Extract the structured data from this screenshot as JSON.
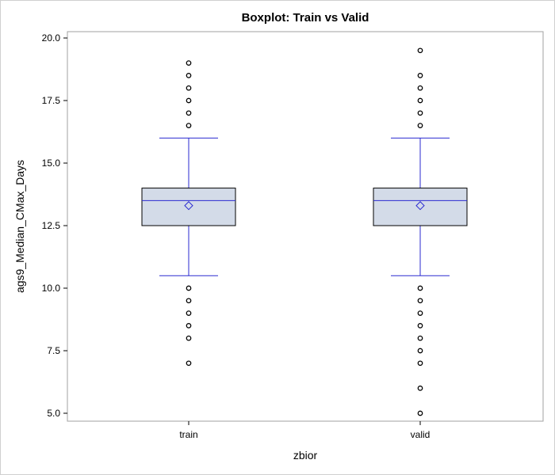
{
  "chart_data": {
    "type": "boxplot",
    "title": "Boxplot: Train vs Valid",
    "xlabel": "zbior",
    "ylabel": "ags9_Median_CMax_Days",
    "ylim": [
      5.0,
      20.0
    ],
    "yticks": [
      5.0,
      7.5,
      10.0,
      12.5,
      15.0,
      17.5,
      20.0
    ],
    "ytick_labels": [
      "5.0",
      "7.5",
      "10.0",
      "12.5",
      "15.0",
      "17.5",
      "20.0"
    ],
    "grid": false,
    "colors": {
      "box_fill": "#d3dbe8",
      "box_stroke": "#000000",
      "whisker": "#2a2ad0",
      "median": "#2a2ad0",
      "mean_marker": "#2a2ad0",
      "outlier": "#000000"
    },
    "categories": [
      "train",
      "valid"
    ],
    "boxes": [
      {
        "category": "train",
        "whisker_low": 10.5,
        "q1": 12.5,
        "median": 13.5,
        "q3": 14.0,
        "whisker_high": 16.0,
        "mean": 13.3,
        "outliers": [
          7.0,
          8.0,
          8.5,
          9.0,
          9.5,
          10.0,
          16.5,
          17.0,
          17.5,
          18.0,
          18.5,
          19.0
        ]
      },
      {
        "category": "valid",
        "whisker_low": 10.5,
        "q1": 12.5,
        "median": 13.5,
        "q3": 14.0,
        "whisker_high": 16.0,
        "mean": 13.3,
        "outliers": [
          5.0,
          6.0,
          7.0,
          7.5,
          8.0,
          8.5,
          9.0,
          9.5,
          10.0,
          16.5,
          17.0,
          17.5,
          18.0,
          18.5,
          19.5
        ]
      }
    ]
  }
}
